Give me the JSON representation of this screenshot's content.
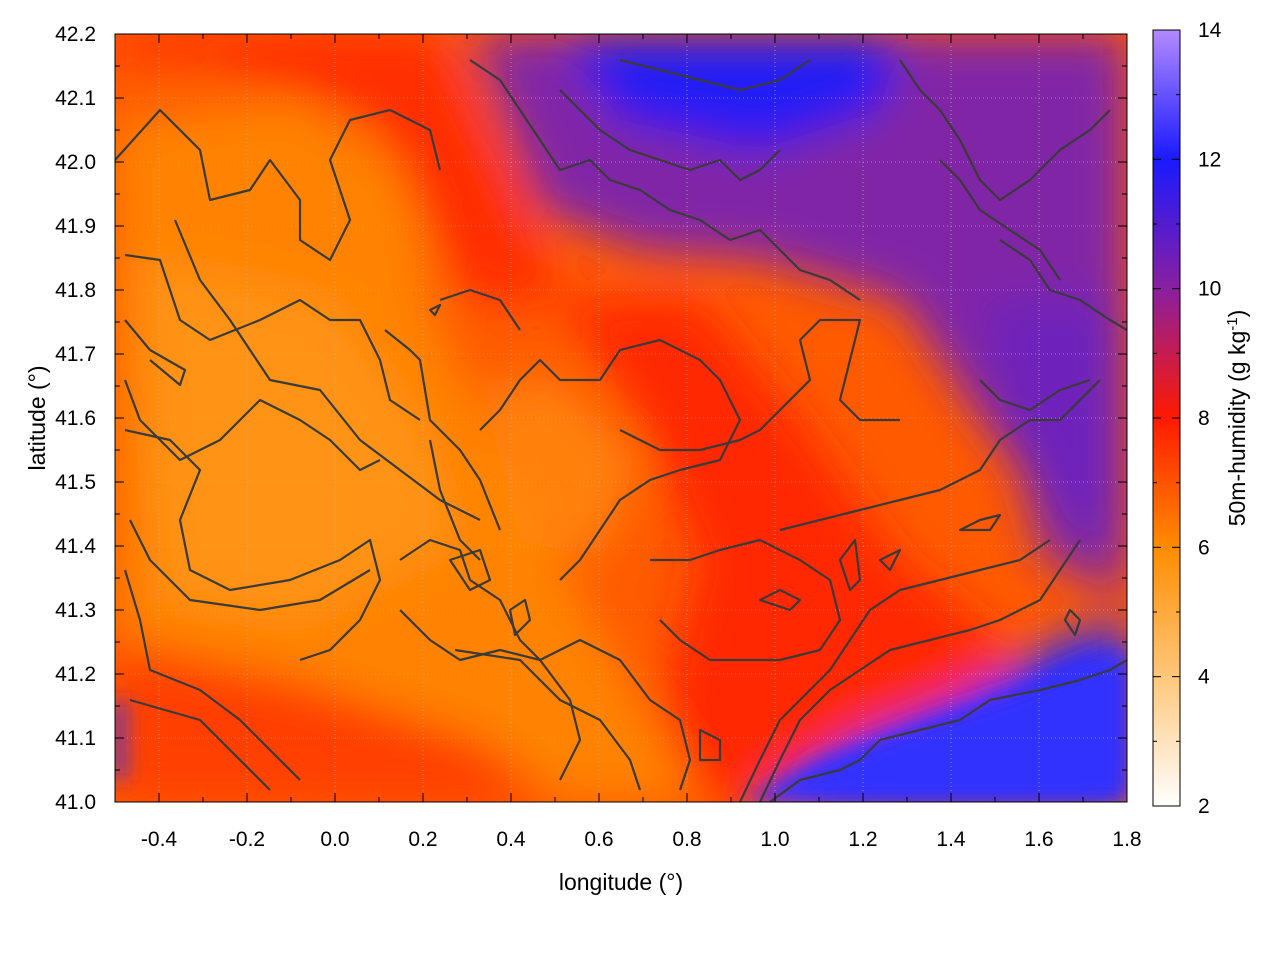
{
  "chart_data": {
    "type": "heatmap",
    "title": "",
    "xlabel": "longitude (°)",
    "ylabel": "latitude (°)",
    "colorbar": {
      "label_main": "50m-humidity (g kg",
      "label_sup": "-1",
      "label_end": ")",
      "range": [
        2,
        14
      ],
      "ticks": [
        "2",
        "4",
        "6",
        "8",
        "10",
        "12",
        "14"
      ],
      "stops": [
        {
          "value": 2,
          "color": "#ffffff"
        },
        {
          "value": 4,
          "color": "#ffc77a"
        },
        {
          "value": 6,
          "color": "#ff8c00"
        },
        {
          "value": 8,
          "color": "#ff1a00"
        },
        {
          "value": 10,
          "color": "#8a1fa0"
        },
        {
          "value": 12,
          "color": "#1a1aff"
        },
        {
          "value": 14,
          "color": "#b38aff"
        }
      ]
    },
    "xlim": [
      -0.5,
      1.8
    ],
    "ylim": [
      41.0,
      42.2
    ],
    "xticks": [
      "-0.4",
      "-0.2",
      "0.0",
      "0.2",
      "0.4",
      "0.6",
      "0.8",
      "1.0",
      "1.2",
      "1.4",
      "1.6",
      "1.8"
    ],
    "yticks": [
      "41.0",
      "41.1",
      "41.2",
      "41.3",
      "41.4",
      "41.5",
      "41.6",
      "41.7",
      "41.8",
      "41.9",
      "42.0",
      "42.1",
      "42.2"
    ],
    "grid": true,
    "contours": "topography (dark grey lines)"
  }
}
